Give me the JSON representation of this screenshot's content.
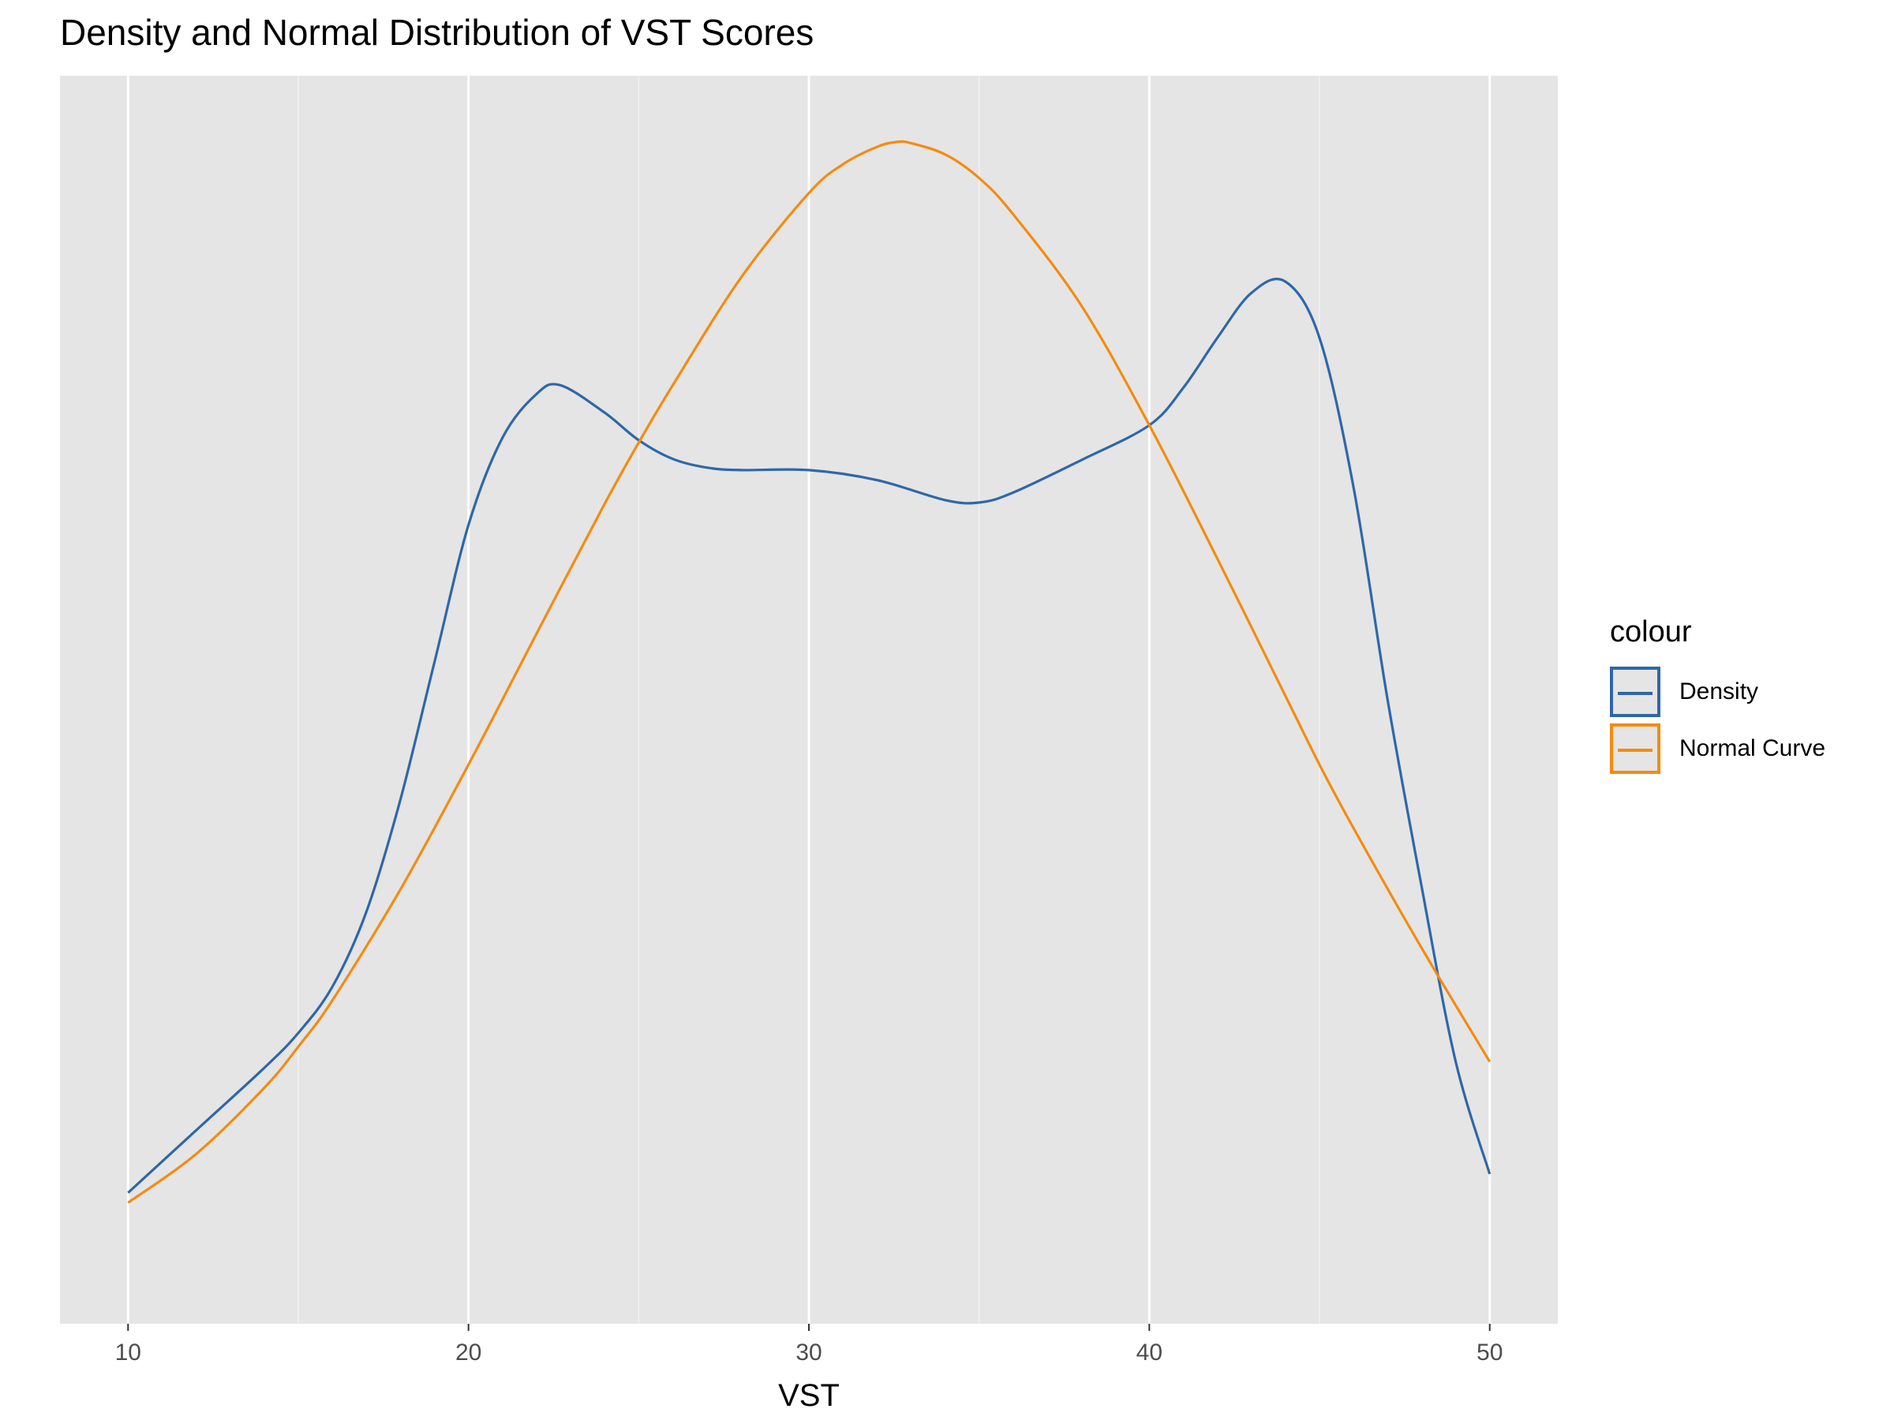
{
  "chart_data": {
    "type": "line",
    "title": "Density and Normal Distribution of VST Scores",
    "xlabel": "VST",
    "ylabel": "",
    "xlim": [
      8,
      52
    ],
    "ylim": [
      0,
      1
    ],
    "x_ticks": [
      10,
      20,
      30,
      40,
      50
    ],
    "x_minor_ticks": [
      15,
      25,
      35,
      45
    ],
    "y_axis_labels_shown": false,
    "grid": true,
    "legend_position": "right",
    "legend_title": "colour",
    "series": [
      {
        "name": "Density",
        "color": "#2e67aa",
        "x": [
          10,
          12,
          14,
          15,
          16,
          17,
          18,
          19,
          20,
          21,
          22,
          22.7,
          24,
          25,
          26,
          27,
          28,
          30,
          32,
          34,
          35,
          36,
          38,
          40,
          41,
          42,
          43,
          44,
          45,
          46,
          47,
          48,
          49,
          50
        ],
        "y": [
          0.105,
          0.155,
          0.205,
          0.233,
          0.27,
          0.33,
          0.42,
          0.53,
          0.64,
          0.71,
          0.745,
          0.752,
          0.73,
          0.708,
          0.693,
          0.686,
          0.684,
          0.684,
          0.676,
          0.66,
          0.658,
          0.666,
          0.692,
          0.72,
          0.75,
          0.79,
          0.826,
          0.835,
          0.79,
          0.67,
          0.5,
          0.35,
          0.21,
          0.12
        ]
      },
      {
        "name": "Normal Curve",
        "color": "#f48b10",
        "x": [
          10,
          12,
          14,
          15,
          16,
          18,
          20,
          22,
          24,
          25,
          26,
          28,
          30,
          31,
          32,
          32.6,
          33,
          34,
          35,
          36,
          38,
          40,
          42,
          44,
          45,
          46,
          48,
          50
        ],
        "y": [
          0.097,
          0.136,
          0.189,
          0.222,
          0.259,
          0.348,
          0.448,
          0.553,
          0.657,
          0.706,
          0.752,
          0.838,
          0.906,
          0.929,
          0.943,
          0.947,
          0.946,
          0.937,
          0.918,
          0.889,
          0.816,
          0.72,
          0.613,
          0.503,
          0.448,
          0.397,
          0.301,
          0.21
        ]
      }
    ]
  }
}
